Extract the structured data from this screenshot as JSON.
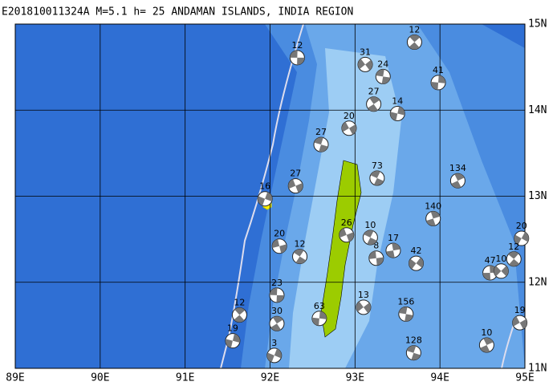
{
  "title": "E201810011324A M=5.1 h= 25 ANDAMAN ISLANDS, INDIA REGION",
  "lonlim": [
    89,
    95
  ],
  "latlim": [
    11,
    15
  ],
  "lonticks": [
    {
      "value": 89,
      "label": "89E"
    },
    {
      "value": 90,
      "label": "90E"
    },
    {
      "value": 91,
      "label": "91E"
    },
    {
      "value": 92,
      "label": "92E"
    },
    {
      "value": 93,
      "label": "93E"
    },
    {
      "value": 94,
      "label": "94E"
    },
    {
      "value": 95,
      "label": "95E"
    }
  ],
  "latticks": [
    {
      "value": 11,
      "label": "11N"
    },
    {
      "value": 12,
      "label": "12N"
    },
    {
      "value": 13,
      "label": "13N"
    },
    {
      "value": 14,
      "label": "14N"
    },
    {
      "value": 15,
      "label": "15N"
    }
  ],
  "events": [
    {
      "lon": 92.32,
      "lat": 14.61,
      "depth": 12
    },
    {
      "lon": 93.7,
      "lat": 14.79,
      "depth": 12
    },
    {
      "lon": 93.98,
      "lat": 14.32,
      "depth": 41
    },
    {
      "lon": 93.12,
      "lat": 14.53,
      "depth": 31
    },
    {
      "lon": 93.33,
      "lat": 14.39,
      "depth": 24
    },
    {
      "lon": 93.22,
      "lat": 14.07,
      "depth": 27
    },
    {
      "lon": 93.5,
      "lat": 13.96,
      "depth": 14
    },
    {
      "lon": 92.93,
      "lat": 13.79,
      "depth": 20
    },
    {
      "lon": 92.6,
      "lat": 13.6,
      "depth": 27
    },
    {
      "lon": 94.21,
      "lat": 13.18,
      "depth": 134
    },
    {
      "lon": 91.94,
      "lat": 12.97,
      "depth": 16
    },
    {
      "lon": 92.3,
      "lat": 13.12,
      "depth": 27
    },
    {
      "lon": 93.26,
      "lat": 13.21,
      "depth": 73
    },
    {
      "lon": 93.92,
      "lat": 12.74,
      "depth": 140
    },
    {
      "lon": 94.96,
      "lat": 12.51,
      "depth": 20
    },
    {
      "lon": 92.11,
      "lat": 12.42,
      "depth": 20
    },
    {
      "lon": 92.35,
      "lat": 12.3,
      "depth": 12
    },
    {
      "lon": 93.45,
      "lat": 12.37,
      "depth": 17
    },
    {
      "lon": 93.72,
      "lat": 12.22,
      "depth": 42
    },
    {
      "lon": 93.25,
      "lat": 12.28,
      "depth": 8
    },
    {
      "lon": 94.87,
      "lat": 12.27,
      "depth": 12
    },
    {
      "lon": 94.59,
      "lat": 12.11,
      "depth": 47
    },
    {
      "lon": 94.72,
      "lat": 12.13,
      "depth": 10
    },
    {
      "lon": 92.08,
      "lat": 11.85,
      "depth": 23
    },
    {
      "lon": 91.64,
      "lat": 11.62,
      "depth": 12
    },
    {
      "lon": 92.58,
      "lat": 11.58,
      "depth": 63
    },
    {
      "lon": 93.1,
      "lat": 11.71,
      "depth": 13
    },
    {
      "lon": 93.6,
      "lat": 11.63,
      "depth": 156
    },
    {
      "lon": 92.08,
      "lat": 11.52,
      "depth": 30
    },
    {
      "lon": 91.56,
      "lat": 11.32,
      "depth": 19
    },
    {
      "lon": 94.94,
      "lat": 11.53,
      "depth": 19
    },
    {
      "lon": 93.69,
      "lat": 11.18,
      "depth": 128
    },
    {
      "lon": 94.55,
      "lat": 11.27,
      "depth": 10
    },
    {
      "lon": 92.05,
      "lat": 11.15,
      "depth": 3
    },
    {
      "lon": 92.9,
      "lat": 12.55,
      "depth": 26
    },
    {
      "lon": 93.18,
      "lat": 12.52,
      "depth": 10
    }
  ]
}
